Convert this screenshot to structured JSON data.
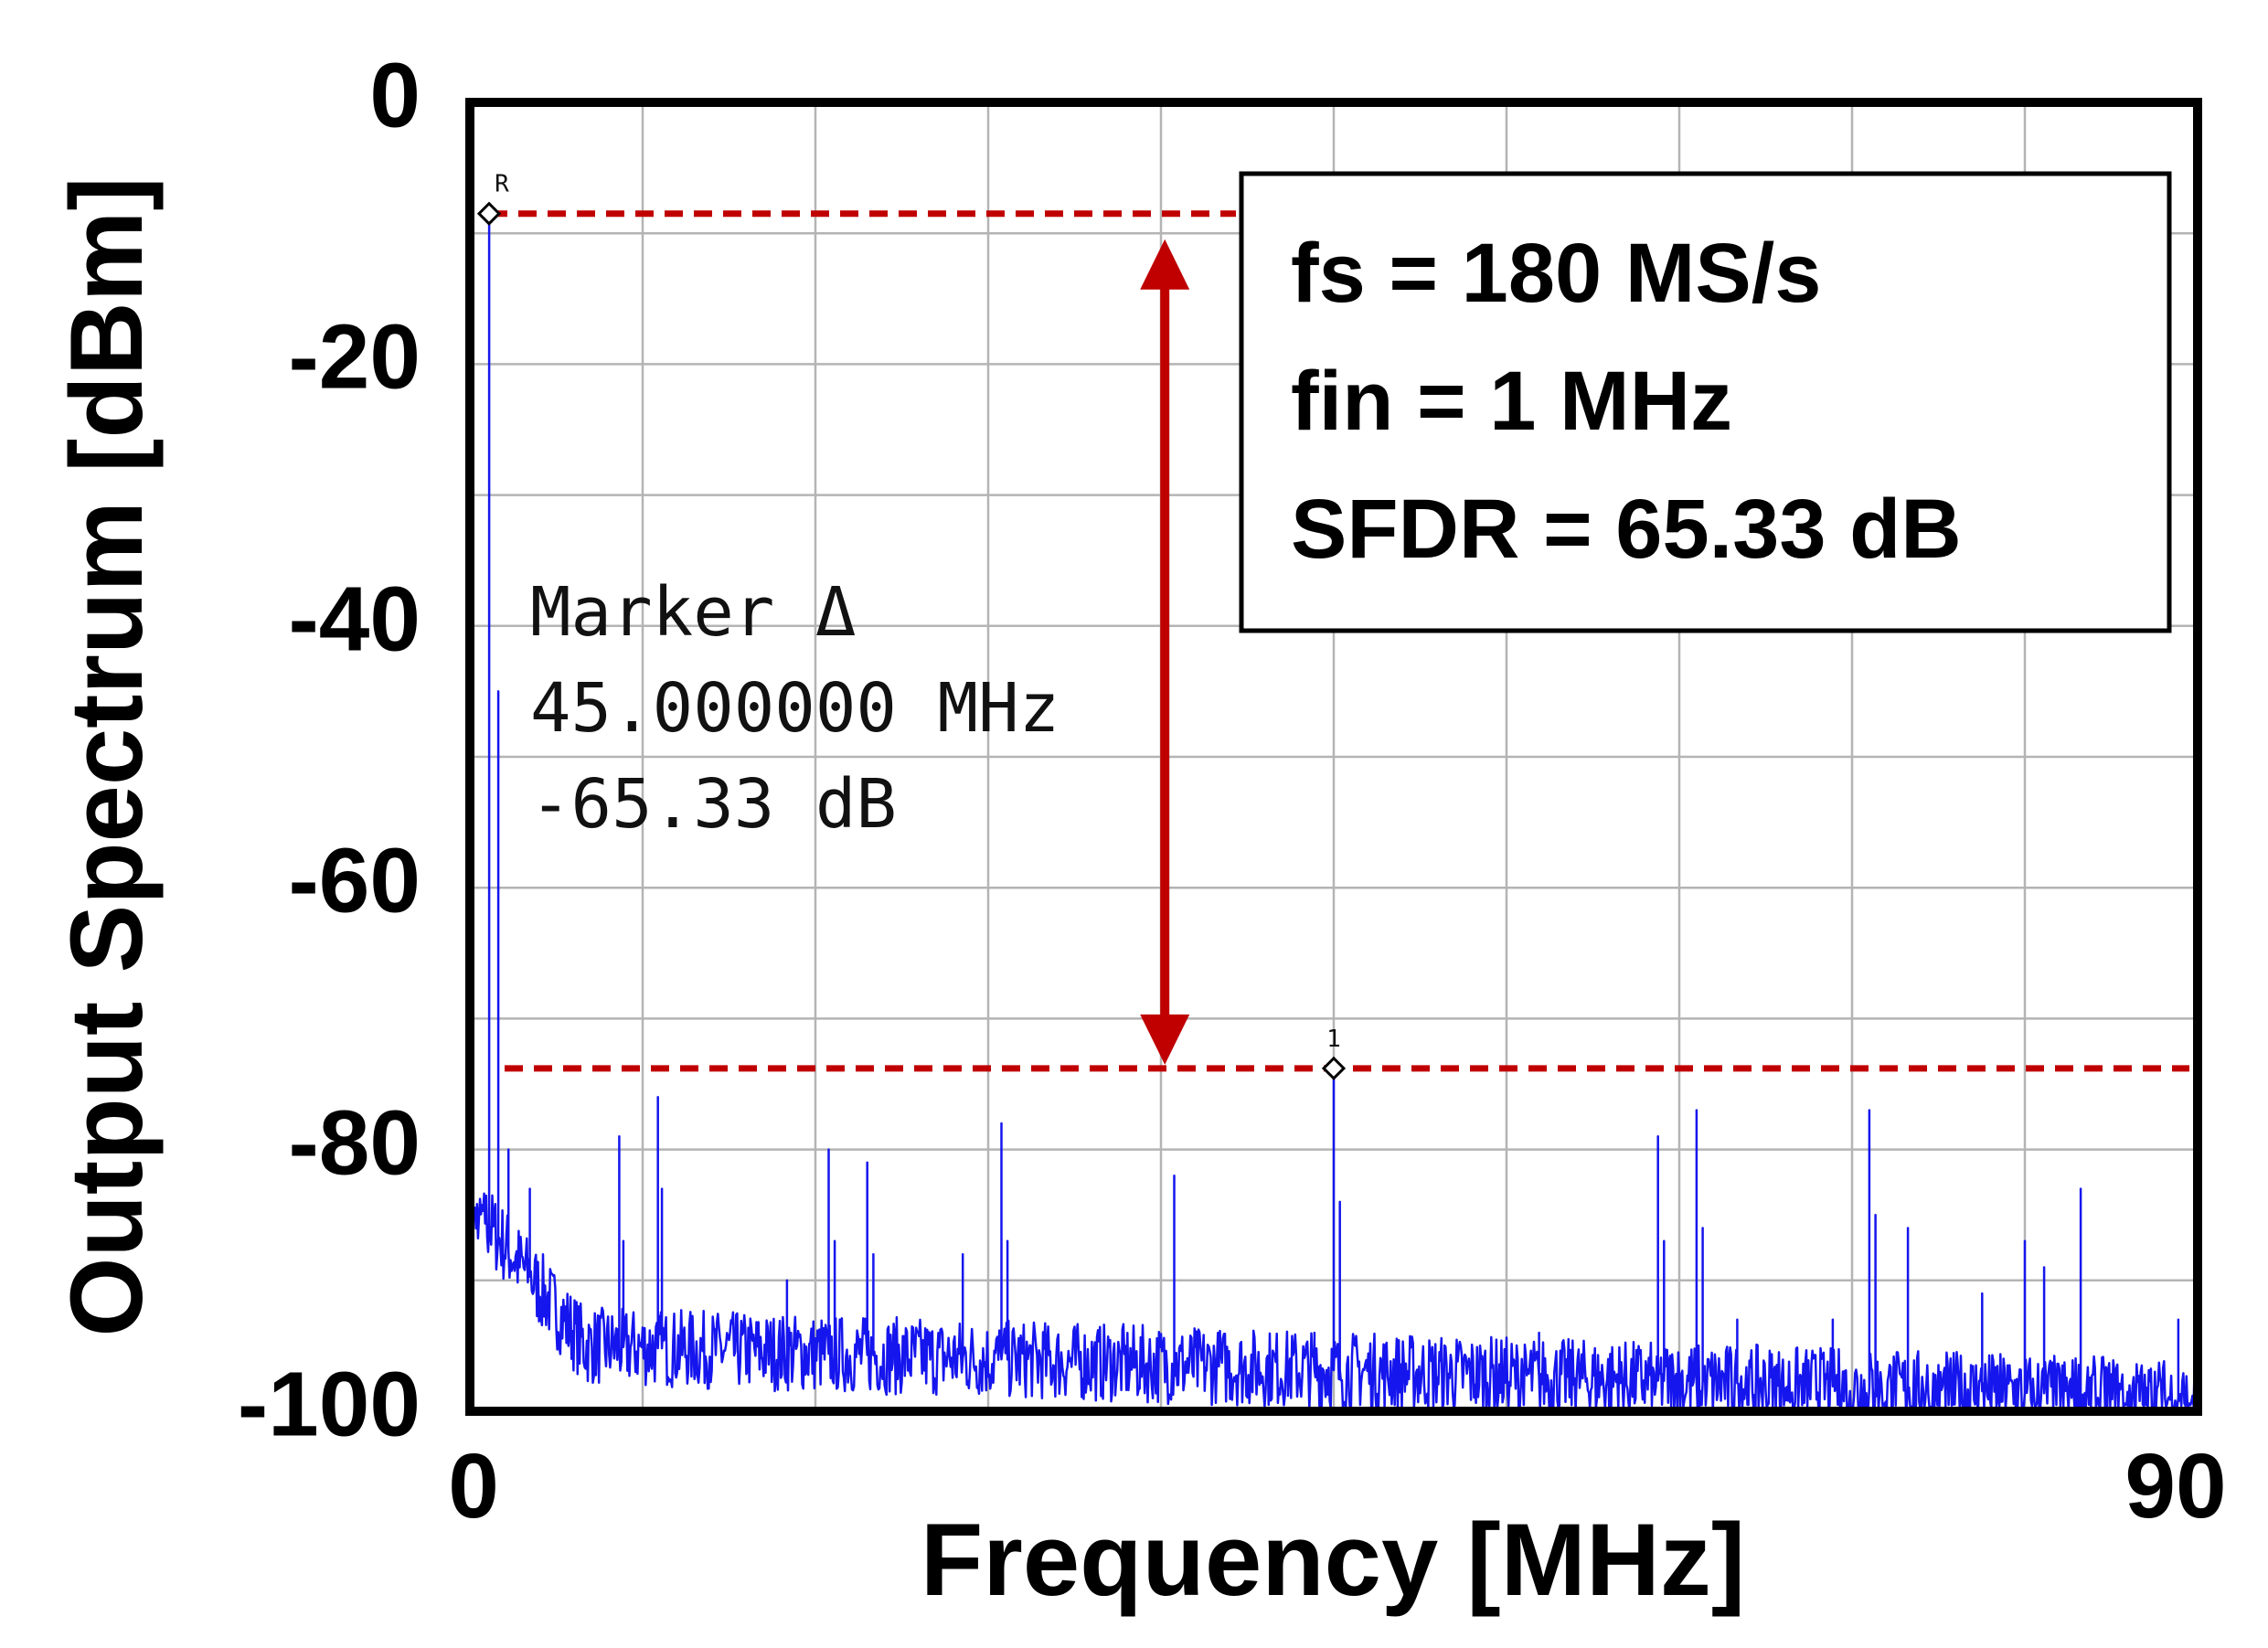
{
  "chart_data": {
    "type": "line",
    "xlabel": "Frequency [MHz]",
    "ylabel": "Output Spectrum [dBm]",
    "xlim": [
      0,
      90
    ],
    "ylim": [
      -100,
      0
    ],
    "x_ticks": [
      "0",
      "90"
    ],
    "y_ticks": [
      "0",
      "-20",
      "-40",
      "-60",
      "-80",
      "-100"
    ],
    "grid": true,
    "grid_divisions": {
      "x": 10,
      "y": 10
    },
    "colors": {
      "trace": "#1515ee",
      "annotation": "#c00000",
      "frame": "#000000",
      "grid": "#b4b4b4"
    },
    "info_box": [
      "fs = 180 MS/s",
      "fin = 1 MHz",
      "SFDR = 65.33 dB"
    ],
    "marker_readout": [
      "Marker Δ",
      "45.000000 MHz",
      "-65.33 dB"
    ],
    "markers": [
      {
        "label": "R",
        "x": 1.0,
        "y": -8.5
      },
      {
        "label": "1",
        "x": 45.0,
        "y": -73.8
      }
    ],
    "reference_lines_db": [
      -8.5,
      -73.8
    ],
    "sfdr_arrow": {
      "x": 36.2,
      "y_top": -8.5,
      "y_bottom": -73.8
    },
    "noise_floor": {
      "start_db": -84,
      "mid_db": -95,
      "end_db": -99
    },
    "spurs": [
      {
        "x": 1.0,
        "y": -8.5
      },
      {
        "x": 1.5,
        "y": -45
      },
      {
        "x": 2.0,
        "y": -80
      },
      {
        "x": 3.1,
        "y": -83
      },
      {
        "x": 7.8,
        "y": -79
      },
      {
        "x": 8.0,
        "y": -87
      },
      {
        "x": 9.8,
        "y": -76
      },
      {
        "x": 10.0,
        "y": -83
      },
      {
        "x": 16.5,
        "y": -90
      },
      {
        "x": 18.7,
        "y": -80
      },
      {
        "x": 19.0,
        "y": -87
      },
      {
        "x": 20.7,
        "y": -81
      },
      {
        "x": 21.0,
        "y": -88
      },
      {
        "x": 25.7,
        "y": -88
      },
      {
        "x": 27.7,
        "y": -78
      },
      {
        "x": 28.0,
        "y": -87
      },
      {
        "x": 36.7,
        "y": -82
      },
      {
        "x": 39.0,
        "y": -94
      },
      {
        "x": 44.0,
        "y": -94
      },
      {
        "x": 45.0,
        "y": -73.8
      },
      {
        "x": 45.3,
        "y": -84
      },
      {
        "x": 55.7,
        "y": -94
      },
      {
        "x": 61.9,
        "y": -79
      },
      {
        "x": 62.2,
        "y": -87
      },
      {
        "x": 63.9,
        "y": -77
      },
      {
        "x": 64.2,
        "y": -86
      },
      {
        "x": 66.0,
        "y": -93
      },
      {
        "x": 71.0,
        "y": -93
      },
      {
        "x": 72.9,
        "y": -77
      },
      {
        "x": 73.2,
        "y": -85
      },
      {
        "x": 74.9,
        "y": -86
      },
      {
        "x": 78.8,
        "y": -91
      },
      {
        "x": 81.0,
        "y": -87
      },
      {
        "x": 82.0,
        "y": -89
      },
      {
        "x": 83.9,
        "y": -83
      },
      {
        "x": 89.0,
        "y": -93
      }
    ]
  }
}
